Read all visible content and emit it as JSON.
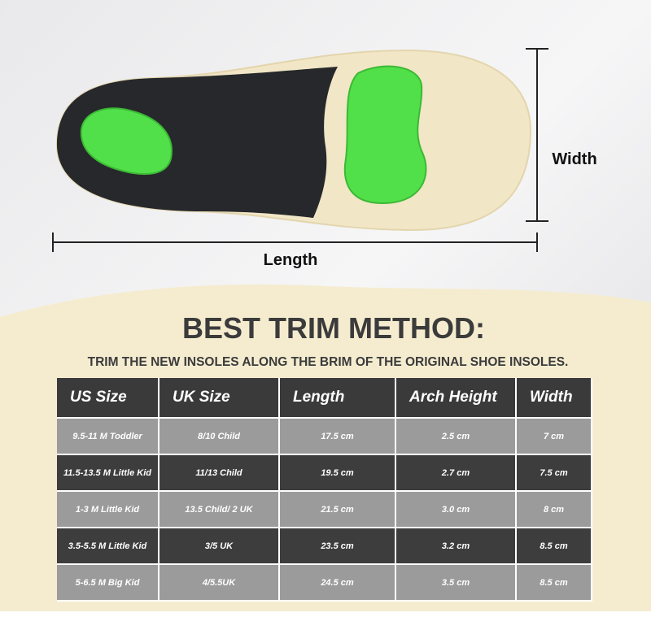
{
  "labels": {
    "width": "Width",
    "length": "Length"
  },
  "heading": {
    "title": "BEST TRIM METHOD:",
    "subtitle": "TRIM THE NEW INSOLES ALONG THE BRIM OF THE ORIGINAL SHOE INSOLES."
  },
  "table": {
    "header": [
      "US Size",
      "UK Size",
      "Length",
      "Arch Height",
      "Width"
    ],
    "rows": [
      [
        "9.5-11 M Toddler",
        "8/10 Child",
        "17.5 cm",
        "2.5 cm",
        "7 cm"
      ],
      [
        "11.5-13.5 M Little Kid",
        "11/13 Child",
        "19.5 cm",
        "2.7 cm",
        "7.5 cm"
      ],
      [
        "1-3 M Little Kid",
        "13.5 Child/ 2 UK",
        "21.5 cm",
        "3.0 cm",
        "8 cm"
      ],
      [
        "3.5-5.5 M Little Kid",
        "3/5 UK",
        "23.5 cm",
        "3.2 cm",
        "8.5 cm"
      ],
      [
        "5-6.5 M Big Kid",
        "4/5.5UK",
        "24.5 cm",
        "3.5 cm",
        "8.5 cm"
      ]
    ]
  }
}
